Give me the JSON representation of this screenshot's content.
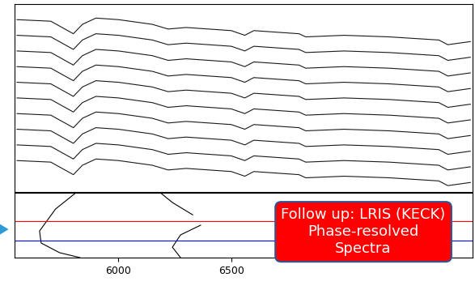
{
  "chart_data": [
    {
      "type": "line",
      "x": [
        5550,
        5700,
        5800,
        5840,
        5900,
        6000,
        6150,
        6220,
        6300,
        6500,
        6560,
        6600,
        6800,
        6830,
        7000,
        7200,
        7420,
        7460,
        7560
      ],
      "color": "#1a1a1a",
      "series": [
        {
          "values": [
            10.5,
            10.4,
            9.6,
            10.2,
            10.6,
            10.5,
            10.2,
            9.9,
            10.0,
            9.8,
            9.5,
            9.8,
            9.6,
            9.4,
            9.5,
            9.4,
            9.2,
            8.9,
            9.1
          ]
        },
        {
          "values": [
            9.5,
            9.4,
            8.6,
            9.2,
            9.6,
            9.5,
            9.2,
            8.9,
            9.0,
            8.8,
            8.5,
            8.8,
            8.6,
            8.4,
            8.5,
            8.4,
            8.2,
            7.9,
            8.1
          ]
        },
        {
          "values": [
            8.5,
            8.4,
            7.6,
            8.2,
            8.6,
            8.5,
            8.2,
            7.9,
            8.0,
            7.8,
            7.5,
            7.8,
            7.6,
            7.4,
            7.5,
            7.4,
            7.2,
            6.9,
            7.1
          ]
        },
        {
          "values": [
            7.5,
            7.4,
            6.6,
            7.2,
            7.6,
            7.5,
            7.2,
            6.9,
            7.0,
            6.8,
            6.5,
            6.8,
            6.6,
            6.4,
            6.5,
            6.4,
            6.2,
            5.9,
            6.1
          ]
        },
        {
          "values": [
            6.5,
            6.4,
            5.6,
            6.2,
            6.6,
            6.5,
            6.2,
            5.9,
            6.0,
            5.8,
            5.5,
            5.8,
            5.6,
            5.4,
            5.5,
            5.4,
            5.2,
            4.9,
            5.1
          ]
        },
        {
          "values": [
            5.5,
            5.4,
            4.6,
            5.2,
            5.6,
            5.5,
            5.2,
            4.9,
            5.0,
            4.8,
            4.5,
            4.8,
            4.6,
            4.4,
            4.5,
            4.4,
            4.2,
            3.9,
            4.1
          ]
        },
        {
          "values": [
            4.5,
            4.4,
            3.6,
            4.2,
            4.6,
            4.5,
            4.2,
            3.9,
            4.0,
            3.8,
            3.5,
            3.8,
            3.6,
            3.4,
            3.5,
            3.4,
            3.2,
            2.9,
            3.1
          ]
        },
        {
          "values": [
            3.5,
            3.4,
            2.6,
            3.2,
            3.6,
            3.5,
            3.2,
            2.9,
            3.0,
            2.8,
            2.5,
            2.8,
            2.6,
            2.4,
            2.5,
            2.4,
            2.2,
            1.9,
            2.1
          ]
        },
        {
          "values": [
            2.5,
            2.4,
            1.6,
            2.2,
            2.6,
            2.5,
            2.2,
            1.9,
            2.0,
            1.8,
            1.5,
            1.8,
            1.6,
            1.4,
            1.5,
            1.4,
            1.2,
            0.9,
            1.1
          ]
        },
        {
          "values": [
            1.5,
            1.4,
            0.6,
            1.2,
            1.6,
            1.5,
            1.2,
            0.9,
            1.0,
            0.8,
            0.5,
            0.8,
            0.6,
            0.4,
            0.5,
            0.4,
            0.2,
            -0.1,
            0.1
          ]
        }
      ],
      "xlim": [
        5540,
        7570
      ],
      "ylim": [
        -0.5,
        11.5
      ],
      "tick_labels": false
    },
    {
      "type": "line",
      "series": [
        {
          "x": [
            5811,
            5721,
            5650,
            5657,
            5739,
            5829
          ],
          "values": [
            1.0,
            0.75,
            0.41,
            0.225,
            0.075,
            0.0
          ],
          "color": "#000000"
        },
        {
          "x": [
            6186,
            6239,
            6329
          ],
          "values": [
            1.0,
            0.85,
            0.66
          ],
          "color": "#000000"
        },
        {
          "x": [
            6364,
            6275,
            6239,
            6275
          ],
          "values": [
            0.5,
            0.35,
            0.16,
            0.0
          ],
          "color": "#000000"
        },
        {
          "x": [
            5540,
            7570
          ],
          "values": [
            0.56,
            0.56
          ],
          "color": "#ff0000"
        },
        {
          "x": [
            5540,
            7570
          ],
          "values": [
            0.26,
            0.26
          ],
          "color": "#0000ff"
        }
      ],
      "xlim": [
        5540,
        7570
      ],
      "ylim": [
        0,
        1
      ],
      "xticks": [
        6000,
        6500
      ],
      "tick_labels": "x"
    }
  ],
  "callout": {
    "text": "Follow up: LRIS (KECK)\nPhase-resolved\nSpectra",
    "color": "#ff0000"
  }
}
